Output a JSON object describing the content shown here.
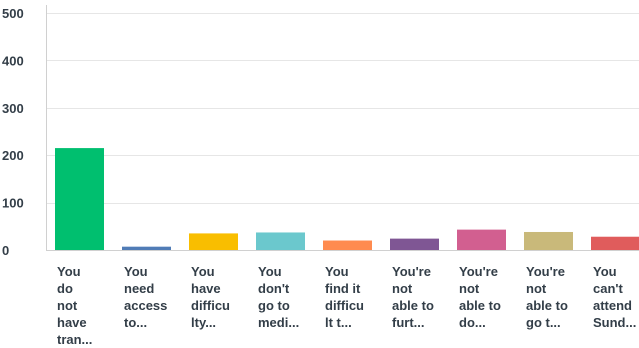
{
  "chart_data": {
    "type": "bar",
    "title": "",
    "xlabel": "",
    "ylabel": "",
    "ylim": [
      0,
      500
    ],
    "yticks": [
      0,
      100,
      200,
      300,
      400,
      500
    ],
    "grid": true,
    "legend": "none",
    "categories": [
      [
        "You",
        "do",
        "not",
        "have",
        "tran..."
      ],
      [
        "You",
        "need",
        "access",
        "to..."
      ],
      [
        "You",
        "have",
        "difficu",
        "lty..."
      ],
      [
        "You",
        "don't",
        "go to",
        "medi..."
      ],
      [
        "You",
        "find it",
        "difficu",
        "lt t..."
      ],
      [
        "You're",
        "not",
        "able to",
        "furt..."
      ],
      [
        "You're",
        "not",
        "able to",
        "do..."
      ],
      [
        "You're",
        "not",
        "able to",
        "go t..."
      ],
      [
        "You",
        "can't",
        "attend",
        "Sund..."
      ]
    ],
    "values": [
      215,
      7,
      35,
      37,
      20,
      24,
      43,
      38,
      28
    ],
    "colors": [
      "#00bf6f",
      "#507cb6",
      "#f9be00",
      "#6bc8cd",
      "#ff8b4f",
      "#7f5694",
      "#d25f90",
      "#c9b97a",
      "#e05c5c"
    ]
  }
}
